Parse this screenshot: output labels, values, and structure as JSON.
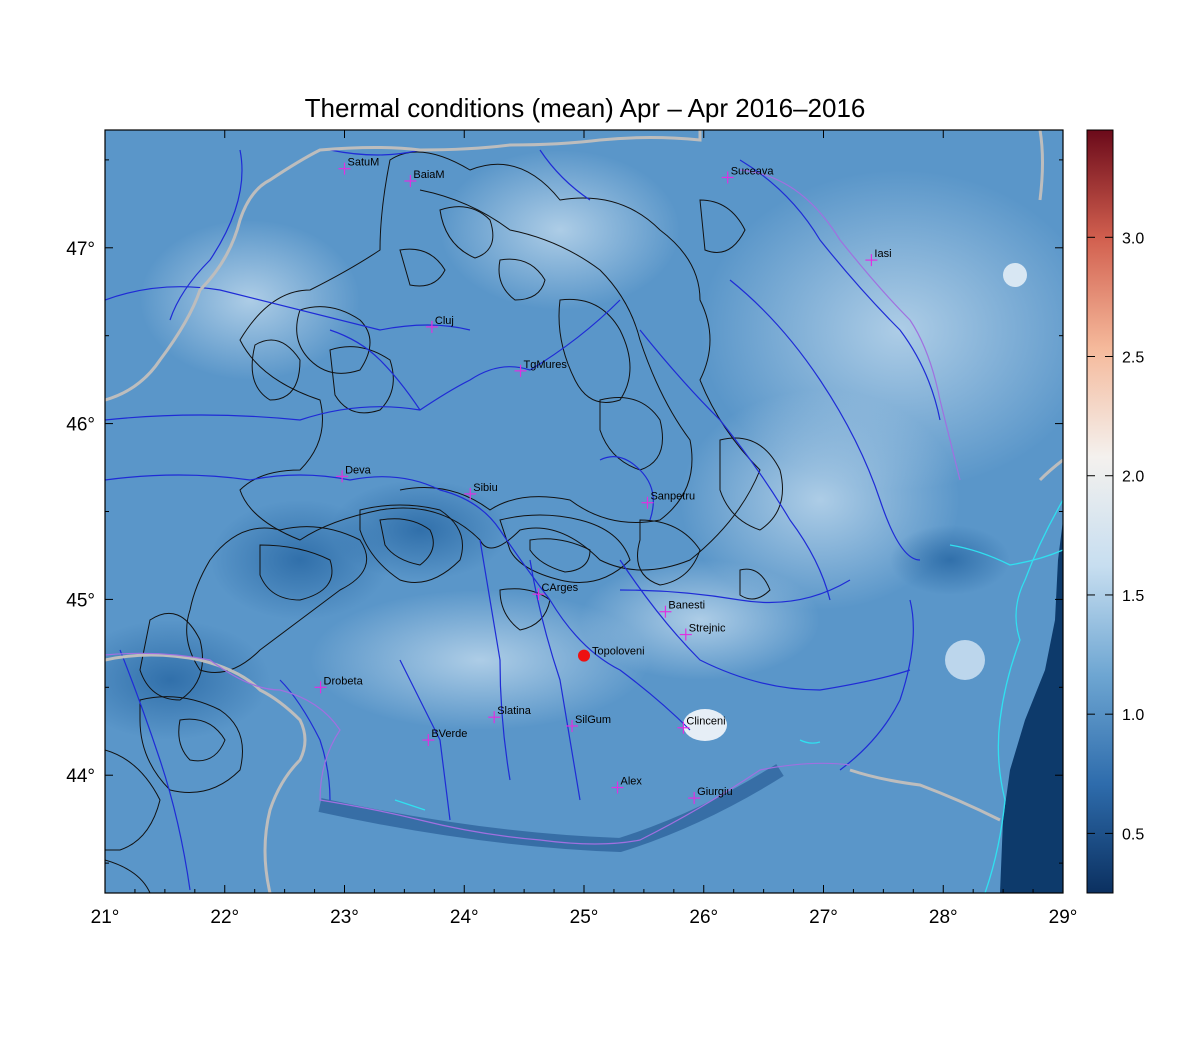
{
  "map": {
    "title": "Thermal conditions (mean) Apr – Apr  2016–2016",
    "lon_range": [
      21,
      29
    ],
    "lat_range": [
      43.33,
      47.67
    ],
    "lon_ticks": [
      "21°",
      "22°",
      "23°",
      "24°",
      "25°",
      "26°",
      "27°",
      "28°",
      "29°"
    ],
    "lat_ticks": [
      "44°",
      "45°",
      "46°",
      "47°"
    ],
    "colors": {
      "field_base": "#5a96c9",
      "river": "#1f2bd6",
      "border": "#bdbdbd",
      "contour": "#111111",
      "station_marker": "#e030e0",
      "highlight_marker": "#ee1111",
      "coast": "#30e0f0",
      "sea": "#0d3a6b"
    }
  },
  "stations": [
    {
      "name": "SatuM",
      "lon": 23.0,
      "lat": 47.45
    },
    {
      "name": "BaiaM",
      "lon": 23.55,
      "lat": 47.38
    },
    {
      "name": "Suceava",
      "lon": 26.2,
      "lat": 47.4
    },
    {
      "name": "Iasi",
      "lon": 27.4,
      "lat": 46.93
    },
    {
      "name": "Cluj",
      "lon": 23.73,
      "lat": 46.55
    },
    {
      "name": "TgMures",
      "lon": 24.47,
      "lat": 46.3
    },
    {
      "name": "Deva",
      "lon": 22.98,
      "lat": 45.7
    },
    {
      "name": "Sibiu",
      "lon": 24.05,
      "lat": 45.6
    },
    {
      "name": "Sanpetru",
      "lon": 25.53,
      "lat": 45.55
    },
    {
      "name": "CArges",
      "lon": 24.62,
      "lat": 45.03
    },
    {
      "name": "Banesti",
      "lon": 25.68,
      "lat": 44.93
    },
    {
      "name": "Strejnic",
      "lon": 25.85,
      "lat": 44.8
    },
    {
      "name": "Drobeta",
      "lon": 22.8,
      "lat": 44.5
    },
    {
      "name": "Slatina",
      "lon": 24.25,
      "lat": 44.33
    },
    {
      "name": "SilGum",
      "lon": 24.9,
      "lat": 44.28
    },
    {
      "name": "Clinceni",
      "lon": 25.83,
      "lat": 44.27
    },
    {
      "name": "BVerde",
      "lon": 23.7,
      "lat": 44.2
    },
    {
      "name": "Alex",
      "lon": 25.28,
      "lat": 43.93
    },
    {
      "name": "Giurgiu",
      "lon": 25.92,
      "lat": 43.87
    }
  ],
  "highlight_station": {
    "name": "Topoloveni",
    "lon": 25.0,
    "lat": 44.68
  },
  "colorbar": {
    "min": 0.25,
    "max": 3.45,
    "ticks": [
      "0.5",
      "1.0",
      "1.5",
      "2.0",
      "2.5",
      "3.0"
    ],
    "tick_values": [
      0.5,
      1.0,
      1.5,
      2.0,
      2.5,
      3.0
    ],
    "stops": [
      "#0b3060",
      "#2e6cac",
      "#6ea6d2",
      "#c7def0",
      "#f4f1ee",
      "#f5b99b",
      "#d2604f",
      "#6b0a1a"
    ]
  }
}
